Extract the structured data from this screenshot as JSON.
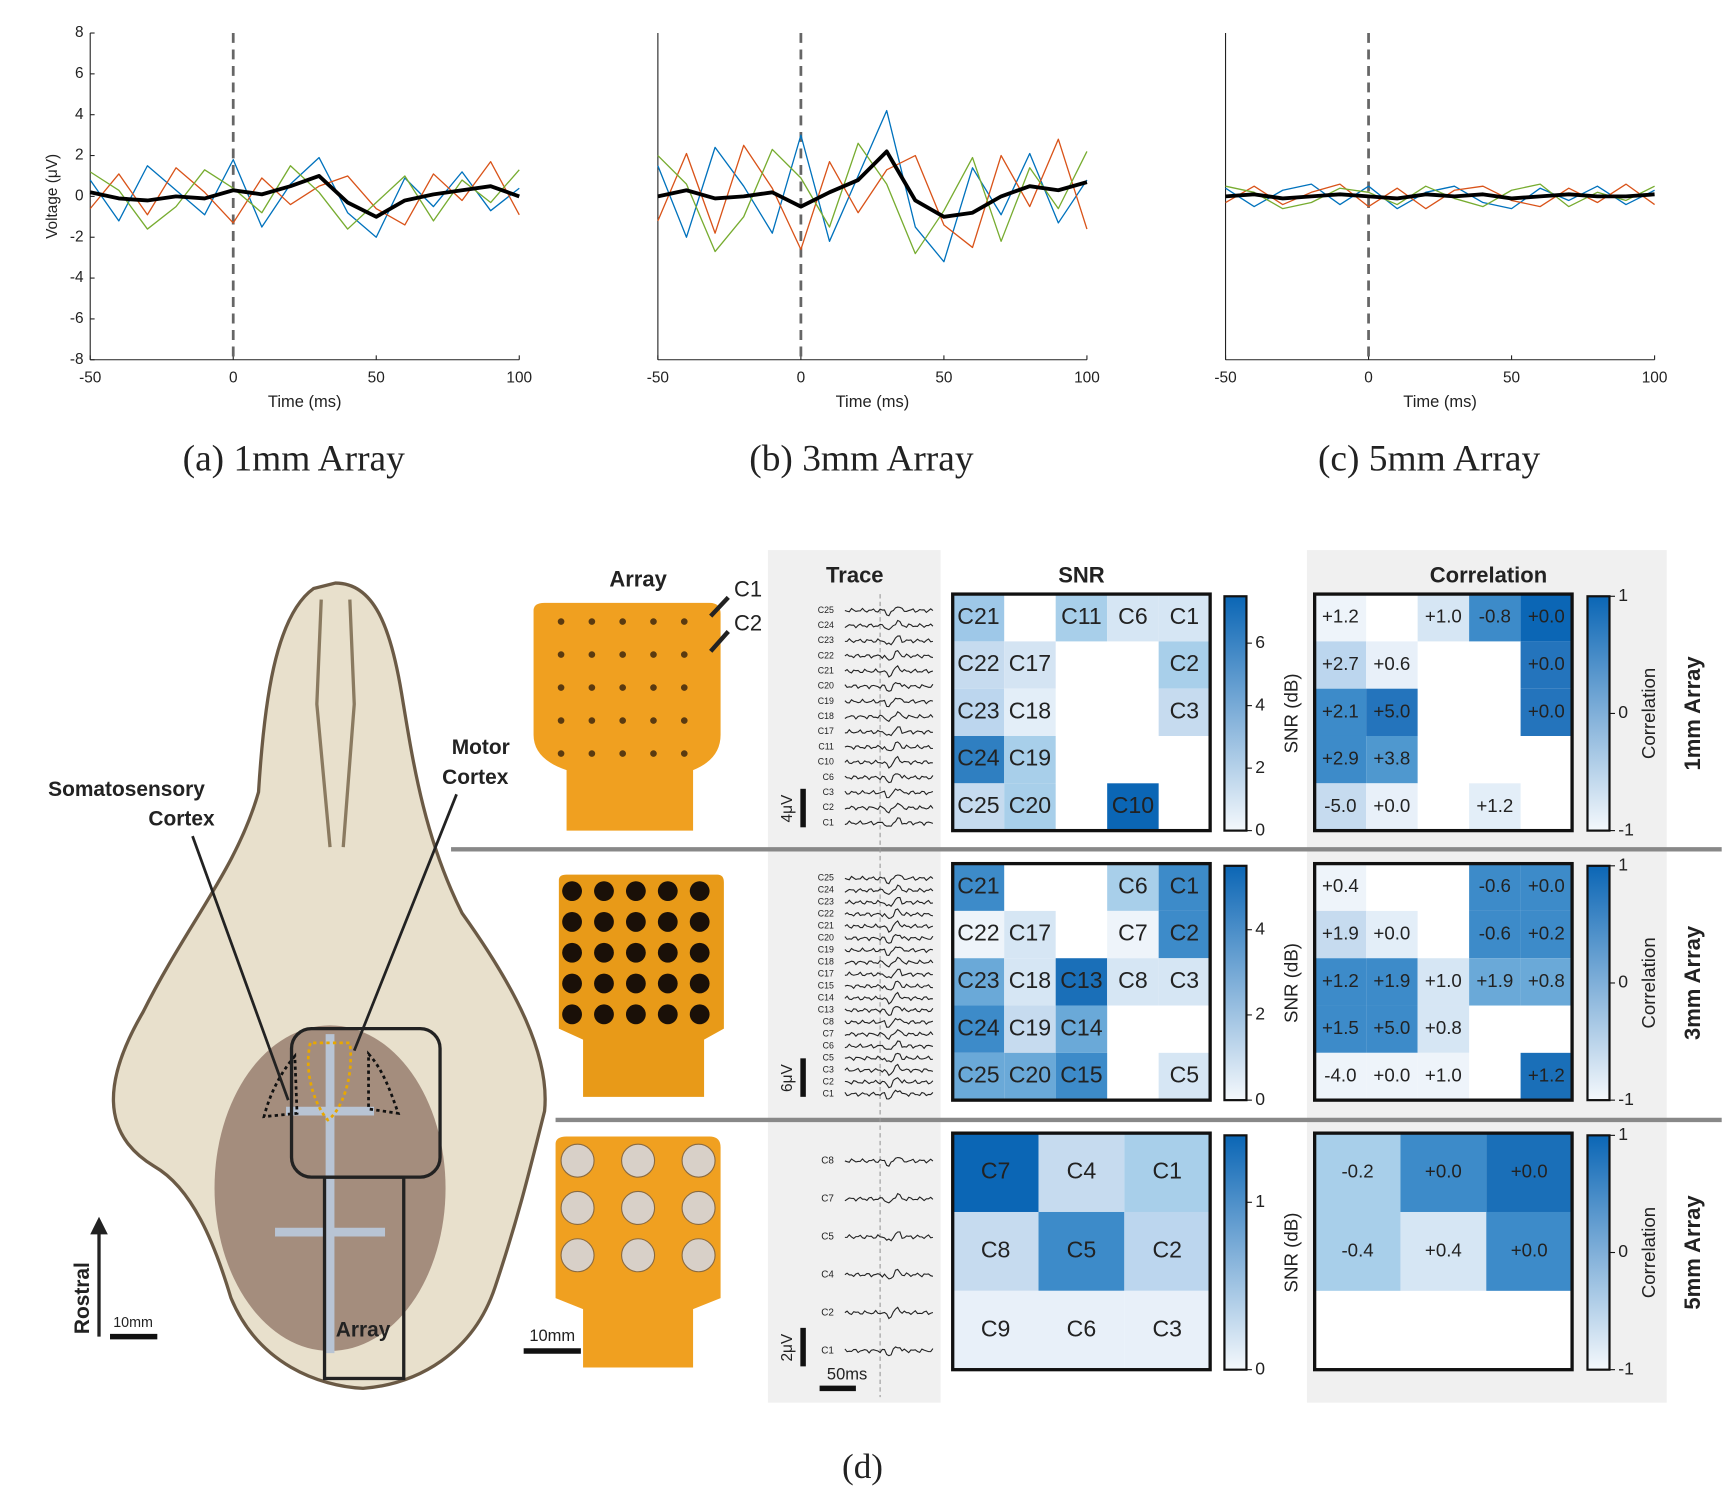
{
  "chart_data": [
    {
      "type": "line",
      "caption": "(a) 1mm Array",
      "xlabel": "Time (ms)",
      "ylabel": "Voltage (μV)",
      "x": [
        -50,
        -40,
        -30,
        -20,
        -10,
        0,
        10,
        20,
        30,
        40,
        50,
        60,
        70,
        80,
        90,
        100
      ],
      "xlim": [
        -50,
        100
      ],
      "xticks": [
        -50,
        0,
        50,
        100
      ],
      "ylim": [
        -8,
        8
      ],
      "yticks": [
        -8,
        -6,
        -4,
        -2,
        0,
        2,
        4,
        6,
        8
      ],
      "vline": 0,
      "series": [
        {
          "color": "#0072bd",
          "values": [
            0.8,
            -1.2,
            1.5,
            0.3,
            -0.9,
            1.8,
            -1.5,
            0.6,
            1.9,
            -0.8,
            -2.0,
            0.9,
            -0.5,
            1.2,
            -0.7,
            0.4
          ]
        },
        {
          "color": "#d95319",
          "values": [
            -0.6,
            1.1,
            -0.9,
            1.4,
            0.2,
            -1.3,
            0.9,
            -0.4,
            0.5,
            1.0,
            -0.6,
            -1.4,
            1.1,
            -0.2,
            1.7,
            -0.9
          ]
        },
        {
          "color": "#77ac30",
          "values": [
            1.2,
            0.3,
            -1.6,
            -0.5,
            1.3,
            0.4,
            -0.8,
            1.5,
            0.2,
            -1.6,
            -0.3,
            1.0,
            -1.2,
            0.8,
            -0.3,
            1.3
          ]
        },
        {
          "color": "#000000",
          "values": [
            0.2,
            -0.1,
            -0.2,
            0,
            -0.1,
            0.3,
            0.1,
            0.5,
            1.0,
            -0.3,
            -1.0,
            -0.2,
            0.1,
            0.3,
            0.5,
            0
          ]
        }
      ]
    },
    {
      "type": "line",
      "caption": "(b) 3mm Array",
      "xlabel": "Time (ms)",
      "x": [
        -50,
        -40,
        -30,
        -20,
        -10,
        0,
        10,
        20,
        30,
        40,
        50,
        60,
        70,
        80,
        90,
        100
      ],
      "xlim": [
        -50,
        100
      ],
      "xticks": [
        -50,
        0,
        50,
        100
      ],
      "ylim": [
        -8,
        8
      ],
      "vline": 0,
      "series": [
        {
          "color": "#0072bd",
          "values": [
            1.5,
            -2.0,
            2.4,
            0.5,
            -1.8,
            3.0,
            -2.2,
            1.0,
            4.2,
            -1.5,
            -3.2,
            1.4,
            -0.9,
            2.1,
            -1.3,
            0.8
          ]
        },
        {
          "color": "#d95319",
          "values": [
            -1.2,
            2.1,
            -1.8,
            2.5,
            0.4,
            -2.6,
            1.7,
            -0.8,
            1.3,
            2.0,
            -1.4,
            -2.5,
            2.0,
            -0.5,
            2.8,
            -1.6
          ]
        },
        {
          "color": "#77ac30",
          "values": [
            2.0,
            0.6,
            -2.7,
            -1.0,
            2.3,
            0.9,
            -1.5,
            2.6,
            0.6,
            -2.8,
            -0.7,
            1.9,
            -2.2,
            1.4,
            -0.6,
            2.2
          ]
        },
        {
          "color": "#000000",
          "values": [
            0,
            0.3,
            -0.1,
            0,
            0.2,
            -0.5,
            0.2,
            0.8,
            2.2,
            -0.2,
            -1.0,
            -0.8,
            0,
            0.5,
            0.3,
            0.7
          ]
        }
      ]
    },
    {
      "type": "line",
      "caption": "(c) 5mm Array",
      "xlabel": "Time (ms)",
      "x": [
        -50,
        -40,
        -30,
        -20,
        -10,
        0,
        10,
        20,
        30,
        40,
        50,
        60,
        70,
        80,
        90,
        100
      ],
      "xlim": [
        -50,
        100
      ],
      "xticks": [
        -50,
        0,
        50,
        100
      ],
      "ylim": [
        -8,
        8
      ],
      "vline": 0,
      "series": [
        {
          "color": "#0072bd",
          "values": [
            0.4,
            -0.5,
            0.3,
            0.6,
            -0.4,
            0.5,
            -0.6,
            0.2,
            0.5,
            -0.3,
            -0.6,
            0.4,
            -0.2,
            0.5,
            -0.4,
            0.3
          ]
        },
        {
          "color": "#d95319",
          "values": [
            -0.3,
            0.5,
            -0.4,
            0.2,
            0.6,
            -0.5,
            0.4,
            -0.6,
            0.3,
            0.5,
            -0.2,
            -0.5,
            0.4,
            -0.3,
            0.6,
            -0.4
          ]
        },
        {
          "color": "#77ac30",
          "values": [
            0.5,
            0.2,
            -0.6,
            -0.3,
            0.4,
            0.2,
            -0.4,
            0.5,
            -0.1,
            -0.5,
            0.3,
            0.6,
            -0.5,
            0.2,
            -0.2,
            0.5
          ]
        },
        {
          "color": "#000000",
          "values": [
            0,
            0.1,
            -0.1,
            0,
            0.1,
            0,
            -0.1,
            0.1,
            0,
            0.1,
            -0.1,
            0,
            0.1,
            0,
            0,
            0.1
          ]
        }
      ]
    }
  ],
  "panel_d": {
    "caption": "(d)",
    "skull": {
      "somatosensory": [
        "Somatosensory",
        "Cortex"
      ],
      "motor": [
        "Motor",
        "Cortex"
      ],
      "rostral": "Rostral",
      "scale": "10mm",
      "array": "Array"
    },
    "array_header": "Array",
    "array_callouts": [
      "C1",
      "C2"
    ],
    "array_scale": "10mm",
    "trace_header": "Trace",
    "time_scale": "50ms",
    "snr_header": "SNR",
    "corr_header": "Correlation",
    "rows": [
      {
        "name": "1mm Array",
        "voltage_scale": "4μV",
        "channels": [
          "C25",
          "C24",
          "C23",
          "C22",
          "C21",
          "C20",
          "C19",
          "C18",
          "C17",
          "C11",
          "C10",
          "C6",
          "C3",
          "C2",
          "C1"
        ],
        "snr": {
          "cells": [
            [
              {
                "label": "C21",
                "color": "#9ec8e8"
              },
              null,
              {
                "label": "C11",
                "color": "#a8cfea"
              },
              {
                "label": "C6",
                "color": "#d6e6f4"
              },
              {
                "label": "C1",
                "color": "#d6e6f4"
              }
            ],
            [
              {
                "label": "C22",
                "color": "#c6dbef"
              },
              {
                "label": "C17",
                "color": "#d4e4f3"
              },
              null,
              null,
              {
                "label": "C2",
                "color": "#a8cfea"
              }
            ],
            [
              {
                "label": "C23",
                "color": "#bcd6ee"
              },
              {
                "label": "C18",
                "color": "#e3eef8"
              },
              null,
              null,
              {
                "label": "C3",
                "color": "#c6dbef"
              }
            ],
            [
              {
                "label": "C24",
                "color": "#2f7fc1"
              },
              {
                "label": "C19",
                "color": "#a8cfea"
              },
              null,
              null,
              null
            ],
            [
              {
                "label": "C25",
                "color": "#c6dbef"
              },
              {
                "label": "C20",
                "color": "#a8cfea"
              },
              null,
              {
                "label": "C10",
                "color": "#0b66b5"
              },
              null
            ]
          ],
          "colorbar": {
            "label": "SNR (dB)",
            "lim": [
              0,
              7.5
            ],
            "ticks": [
              0,
              2,
              4,
              6
            ]
          }
        },
        "correlation": {
          "cells": [
            [
              {
                "label": "+1.2",
                "color": "#eef4fa"
              },
              null,
              {
                "label": "+1.0",
                "color": "#d6e6f4"
              },
              {
                "label": "-0.8",
                "color": "#3d8bc9"
              },
              {
                "label": "+0.0",
                "color": "#0b66b5"
              }
            ],
            [
              {
                "label": "+2.7",
                "color": "#bcd6ee"
              },
              {
                "label": "+0.6",
                "color": "#e8f0f9"
              },
              null,
              null,
              {
                "label": "+0.0",
                "color": "#2474bc"
              }
            ],
            [
              {
                "label": "+2.1",
                "color": "#3d8bc9"
              },
              {
                "label": "+5.0",
                "color": "#2474bc"
              },
              null,
              null,
              {
                "label": "+0.0",
                "color": "#2474bc"
              }
            ],
            [
              {
                "label": "+2.9",
                "color": "#3d8bc9"
              },
              {
                "label": "+3.8",
                "color": "#4f98cf"
              },
              null,
              null,
              null
            ],
            [
              {
                "label": "-5.0",
                "color": "#c6dbef"
              },
              {
                "label": "+0.0",
                "color": "#e8f0f9"
              },
              null,
              {
                "label": "+1.2",
                "color": "#e3eef8"
              },
              null
            ]
          ],
          "colorbar": {
            "label": "Correlation",
            "lim": [
              -1,
              1
            ],
            "ticks": [
              -1,
              0,
              1
            ]
          }
        }
      },
      {
        "name": "3mm Array",
        "voltage_scale": "6μV",
        "channels": [
          "C25",
          "C24",
          "C23",
          "C22",
          "C21",
          "C20",
          "C19",
          "C18",
          "C17",
          "C15",
          "C14",
          "C13",
          "C8",
          "C7",
          "C6",
          "C5",
          "C3",
          "C2",
          "C1"
        ],
        "snr": {
          "cells": [
            [
              {
                "label": "C21",
                "color": "#3d8bc9"
              },
              null,
              null,
              {
                "label": "C6",
                "color": "#a8cfea"
              },
              {
                "label": "C1",
                "color": "#3d8bc9"
              }
            ],
            [
              {
                "label": "C22",
                "color": "#eef4fa"
              },
              {
                "label": "C17",
                "color": "#d6e6f4"
              },
              null,
              {
                "label": "C7",
                "color": "#eef4fa"
              },
              {
                "label": "C2",
                "color": "#3d8bc9"
              }
            ],
            [
              {
                "label": "C23",
                "color": "#6aa9d8"
              },
              {
                "label": "C18",
                "color": "#d6e6f4"
              },
              {
                "label": "C13",
                "color": "#1a6fb8"
              },
              {
                "label": "C8",
                "color": "#d6e6f4"
              },
              {
                "label": "C3",
                "color": "#d6e6f4"
              }
            ],
            [
              {
                "label": "C24",
                "color": "#3d8bc9"
              },
              {
                "label": "C19",
                "color": "#c6dbef"
              },
              {
                "label": "C14",
                "color": "#6aa9d8"
              },
              null,
              null
            ],
            [
              {
                "label": "C25",
                "color": "#6aa9d8"
              },
              {
                "label": "C20",
                "color": "#6aa9d8"
              },
              {
                "label": "C15",
                "color": "#3d8bc9"
              },
              null,
              {
                "label": "C5",
                "color": "#d6e6f4"
              }
            ]
          ],
          "colorbar": {
            "label": "SNR (dB)",
            "lim": [
              0,
              5.5
            ],
            "ticks": [
              0,
              2,
              4
            ]
          }
        },
        "correlation": {
          "cells": [
            [
              {
                "label": "+0.4",
                "color": "#eef4fa"
              },
              null,
              null,
              {
                "label": "-0.6",
                "color": "#3d8bc9"
              },
              {
                "label": "+0.0",
                "color": "#3d8bc9"
              }
            ],
            [
              {
                "label": "+1.9",
                "color": "#c6dbef"
              },
              {
                "label": "+0.0",
                "color": "#e3eef8"
              },
              null,
              {
                "label": "-0.6",
                "color": "#3d8bc9"
              },
              {
                "label": "+0.2",
                "color": "#3d8bc9"
              }
            ],
            [
              {
                "label": "+1.2",
                "color": "#3d8bc9"
              },
              {
                "label": "+1.9",
                "color": "#3d8bc9"
              },
              {
                "label": "+1.0",
                "color": "#d6e6f4"
              },
              {
                "label": "+1.9",
                "color": "#6aa9d8"
              },
              {
                "label": "+0.8",
                "color": "#6aa9d8"
              }
            ],
            [
              {
                "label": "+1.5",
                "color": "#3d8bc9"
              },
              {
                "label": "+5.0",
                "color": "#3d8bc9"
              },
              {
                "label": "+0.8",
                "color": "#d6e6f4"
              },
              null,
              null
            ],
            [
              {
                "label": "-4.0",
                "color": "#eef4fa"
              },
              {
                "label": "+0.0",
                "color": "#eef4fa"
              },
              {
                "label": "+1.0",
                "color": "#eef4fa"
              },
              null,
              {
                "label": "+1.2",
                "color": "#1a6fb8"
              }
            ]
          ],
          "colorbar": {
            "label": "Correlation",
            "lim": [
              -1,
              1
            ],
            "ticks": [
              -1,
              0,
              1
            ]
          }
        }
      },
      {
        "name": "5mm Array",
        "voltage_scale": "2μV",
        "channels": [
          "C8",
          "C7",
          "C5",
          "C4",
          "C2",
          "C1"
        ],
        "snr": {
          "cells": [
            [
              {
                "label": "C7",
                "color": "#0b66b5"
              },
              {
                "label": "C4",
                "color": "#c6dbef"
              },
              {
                "label": "C1",
                "color": "#a8cfea"
              }
            ],
            [
              {
                "label": "C8",
                "color": "#c6dbef"
              },
              {
                "label": "C5",
                "color": "#3d8bc9"
              },
              {
                "label": "C2",
                "color": "#bcd6ee"
              }
            ],
            [
              {
                "label": "C9",
                "color": "#e8f0f9"
              },
              {
                "label": "C6",
                "color": "#e8f0f9"
              },
              {
                "label": "C3",
                "color": "#e8f0f9"
              }
            ]
          ],
          "colorbar": {
            "label": "SNR (dB)",
            "lim": [
              0,
              1.4
            ],
            "ticks": [
              0,
              1
            ]
          }
        },
        "correlation": {
          "cells": [
            [
              {
                "label": "-0.2",
                "color": "#a8cfea"
              },
              {
                "label": "+0.0",
                "color": "#3d8bc9"
              },
              {
                "label": "+0.0",
                "color": "#1a6fb8"
              }
            ],
            [
              {
                "label": "-0.4",
                "color": "#a8cfea"
              },
              {
                "label": "+0.4",
                "color": "#d6e6f4"
              },
              {
                "label": "+0.0",
                "color": "#3d8bc9"
              }
            ],
            [
              null,
              null,
              null
            ]
          ],
          "colorbar": {
            "label": "Correlation",
            "lim": [
              -1,
              1
            ],
            "ticks": [
              -1,
              0,
              1
            ]
          }
        }
      }
    ]
  }
}
